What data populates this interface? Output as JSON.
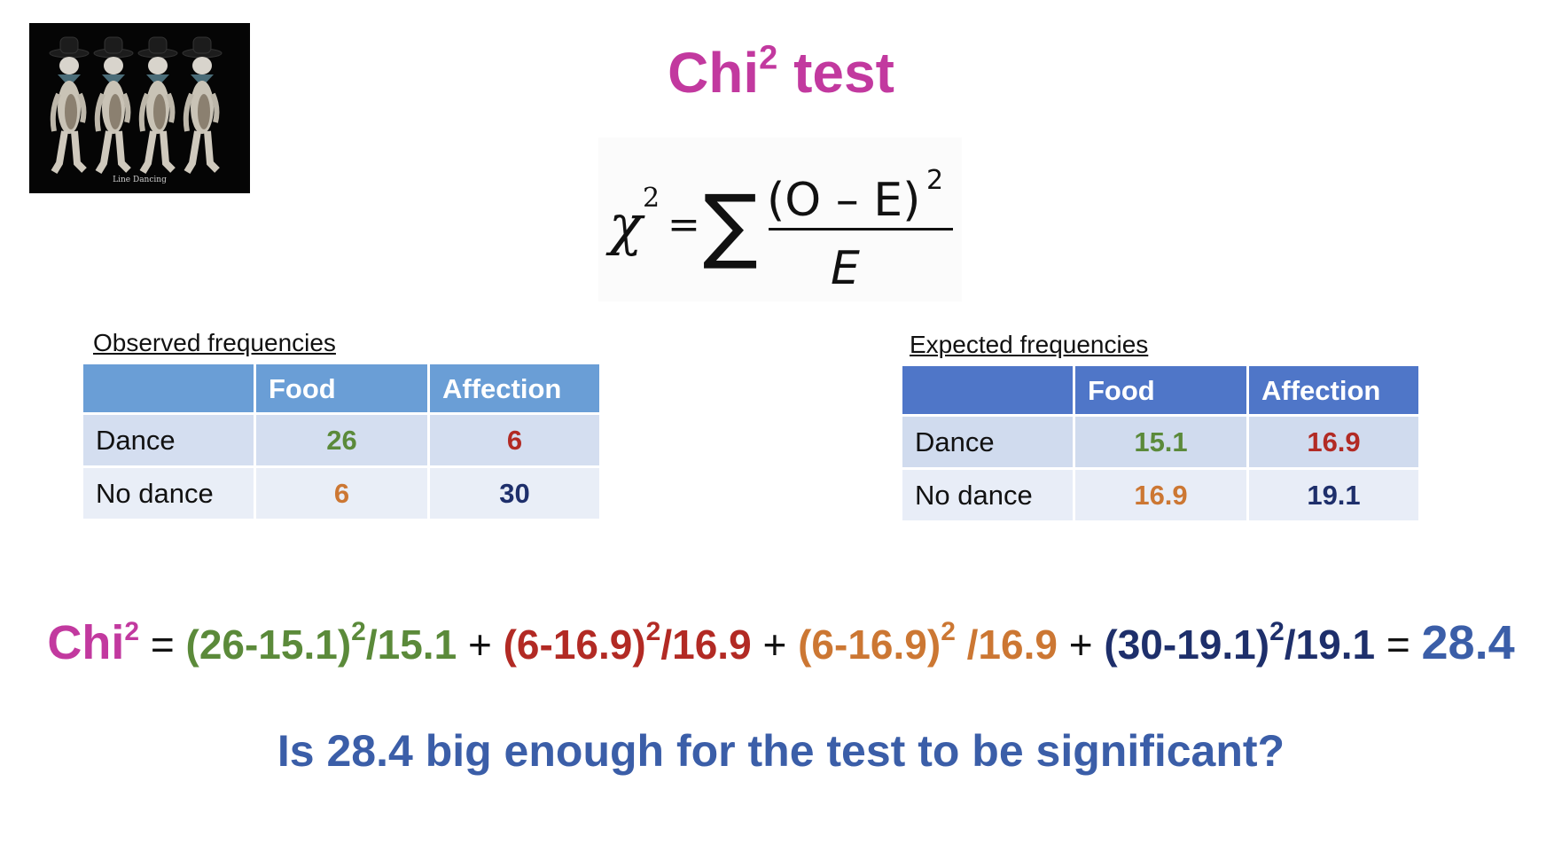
{
  "title": {
    "text": "Chi",
    "sup": "2",
    "rest": " test"
  },
  "photo": {
    "caption": "Line Dancing"
  },
  "observed": {
    "label": "Observed frequencies",
    "headers": [
      "",
      "Food",
      "Affection"
    ],
    "rows": [
      {
        "label": "Dance",
        "food": "26",
        "affection": "6"
      },
      {
        "label": "No dance",
        "food": "6",
        "affection": "30"
      }
    ]
  },
  "expected": {
    "label": "Expected frequencies",
    "headers": [
      "",
      "Food",
      "Affection"
    ],
    "rows": [
      {
        "label": "Dance",
        "food": "15.1",
        "affection": "16.9"
      },
      {
        "label": "No dance",
        "food": "16.9",
        "affection": "19.1"
      }
    ]
  },
  "calculation": {
    "lhs": "Chi",
    "lhs_sup": "2",
    "eq": "=",
    "plus": "+",
    "terms": [
      {
        "pre": "(26-15.1)",
        "sup": "2",
        "post": "/15.1"
      },
      {
        "pre": "(6-16.9)",
        "sup": "2",
        "post": "/16.9"
      },
      {
        "pre": "(6-16.9)",
        "sup": "2",
        "post": " /16.9"
      },
      {
        "pre": "(30-19.1)",
        "sup": "2",
        "post": "/19.1"
      }
    ],
    "result": "28.4"
  },
  "question": "Is 28.4 big enough for the test to be significant?",
  "colors": {
    "title": "#c2399f",
    "green": "#5b8a3a",
    "red": "#b22a24",
    "orange": "#cc7733",
    "navy": "#1e2f6b",
    "blue": "#3b5ea8"
  }
}
